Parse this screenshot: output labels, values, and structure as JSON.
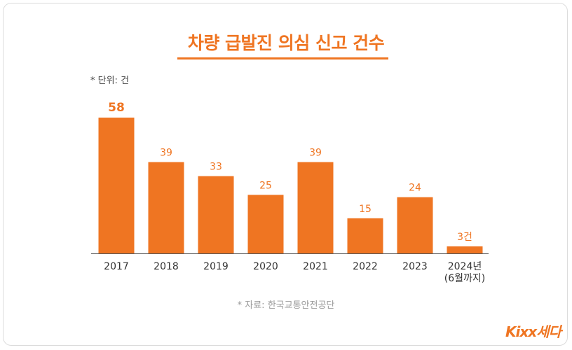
{
  "colors": {
    "accent": "#ef7522",
    "axis": "#555555",
    "tick_text": "#333333",
    "source_text": "#9a9a9a"
  },
  "unit_note": "* 단위: 건",
  "source_note": "* 자료: 한국교통안전공단",
  "brand": "Kixx세다",
  "chart_data": {
    "type": "bar",
    "title": "차량 급발진 의심 신고 건수",
    "xlabel": "",
    "ylabel": "",
    "ylim": [
      0,
      58
    ],
    "grid": false,
    "categories": [
      "2017",
      "2018",
      "2019",
      "2020",
      "2021",
      "2022",
      "2023",
      "2024년\n(6월까지)"
    ],
    "values": [
      58,
      39,
      33,
      25,
      39,
      15,
      24,
      3
    ],
    "value_labels": [
      "58",
      "39",
      "33",
      "25",
      "39",
      "15",
      "24",
      "3건"
    ],
    "highlight_index": 0
  }
}
